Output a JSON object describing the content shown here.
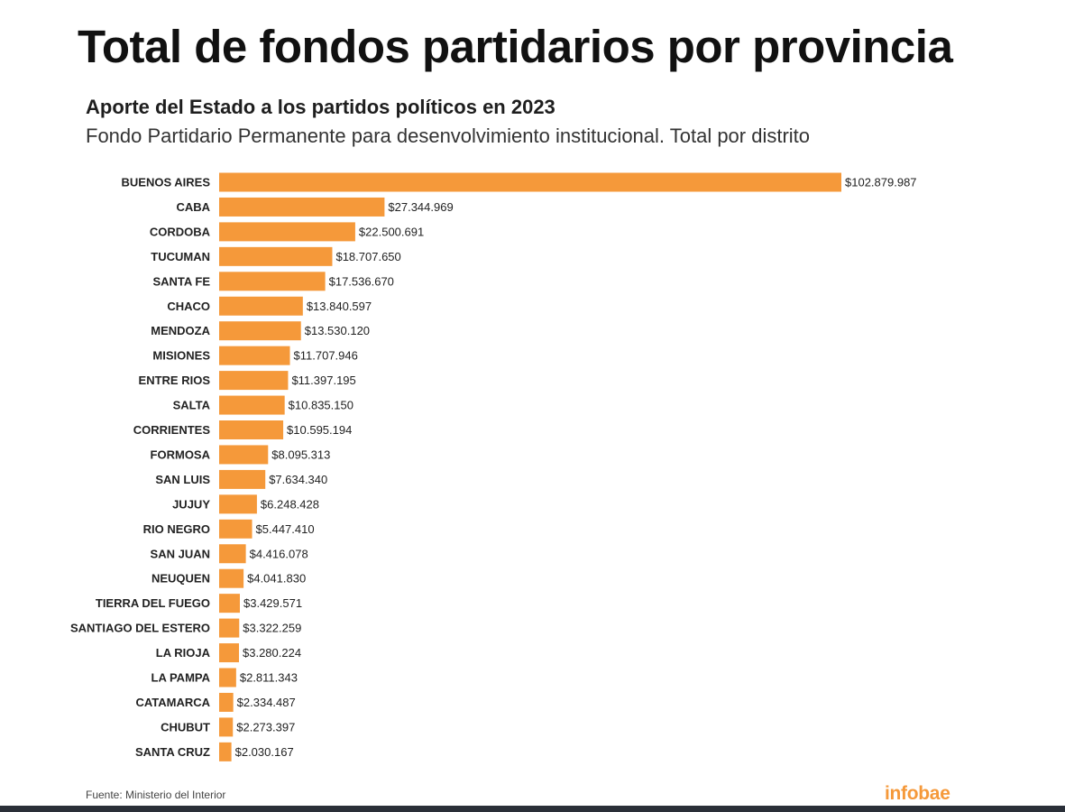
{
  "title": "Total de fondos partidarios por provincia",
  "subtitle": "Aporte del Estado a los partidos políticos en 2023",
  "description": "Fondo Partidario Permanente para desenvolvimiento institucional. Total por distrito",
  "source": "Fuente: Ministerio del Interior",
  "logo": "infobae",
  "colors": {
    "bar": "#F5993A",
    "logo": "#F5993A",
    "text": "#222222"
  },
  "chart_data": {
    "type": "bar",
    "orientation": "horizontal",
    "title": "Total de fondos partidarios por provincia",
    "subtitle": "Aporte del Estado a los partidos políticos en 2023",
    "xlabel": "",
    "ylabel": "",
    "xlim": [
      0,
      102879987
    ],
    "grid": false,
    "legend": "none",
    "categories": [
      "BUENOS AIRES",
      "CABA",
      "CORDOBA",
      "TUCUMAN",
      "SANTA FE",
      "CHACO",
      "MENDOZA",
      "MISIONES",
      "ENTRE RIOS",
      "SALTA",
      "CORRIENTES",
      "FORMOSA",
      "SAN LUIS",
      "JUJUY",
      "RIO NEGRO",
      "SAN JUAN",
      "NEUQUEN",
      "TIERRA DEL FUEGO",
      "SANTIAGO DEL ESTERO",
      "LA RIOJA",
      "LA PAMPA",
      "CATAMARCA",
      "CHUBUT",
      "SANTA CRUZ"
    ],
    "values": [
      102879987,
      27344969,
      22500691,
      18707650,
      17536670,
      13840597,
      13530120,
      11707946,
      11397195,
      10835150,
      10595194,
      8095313,
      7634340,
      6248428,
      5447410,
      4416078,
      4041830,
      3429571,
      3322259,
      3280224,
      2811343,
      2334487,
      2273397,
      2030167
    ],
    "value_labels": [
      "$102.879.987",
      "$27.344.969",
      "$22.500.691",
      "$18.707.650",
      "$17.536.670",
      "$13.840.597",
      "$13.530.120",
      "$11.707.946",
      "$11.397.195",
      "$10.835.150",
      "$10.595.194",
      "$8.095.313",
      "$7.634.340",
      "$6.248.428",
      "$5.447.410",
      "$4.416.078",
      "$4.041.830",
      "$3.429.571",
      "$3.322.259",
      "$3.280.224",
      "$2.811.343",
      "$2.334.487",
      "$2.273.397",
      "$2.030.167"
    ]
  }
}
